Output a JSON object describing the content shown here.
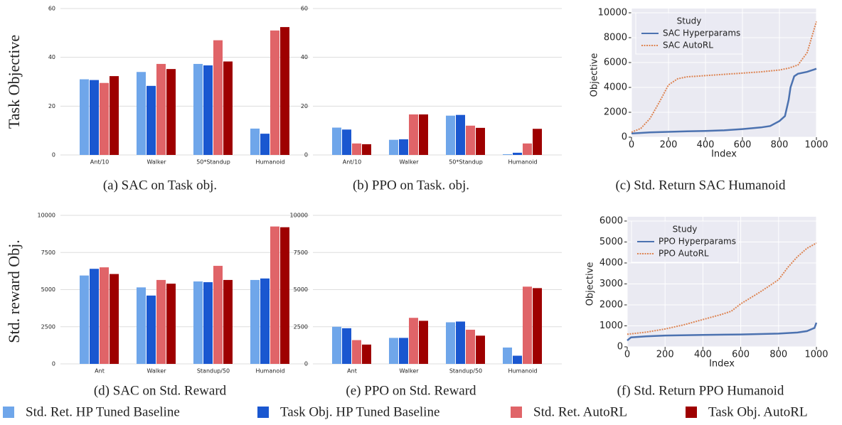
{
  "row_labels": [
    "Task Objective",
    "Std. reward Obj."
  ],
  "chart_data": [
    {
      "type": "bar",
      "caption": "(a) SAC on Task obj.",
      "categories": [
        "Ant/10",
        "Walker",
        "50*Standup",
        "Humanoid"
      ],
      "ylim": [
        0,
        60
      ],
      "yticks": [
        0,
        20,
        40,
        60
      ],
      "grid": true,
      "series": [
        {
          "name": "Std. Ret. HP Tuned Baseline",
          "color": "#6fa6ea",
          "values": [
            31,
            34,
            37.3,
            10.8
          ]
        },
        {
          "name": "Task Obj. HP Tuned Baseline",
          "color": "#1a57d0",
          "values": [
            30.7,
            28.3,
            36.7,
            8.7
          ]
        },
        {
          "name": "Std. Ret. AutoRL",
          "color": "#e06468",
          "values": [
            29.5,
            37.3,
            47,
            51
          ]
        },
        {
          "name": "Task Obj. AutoRL",
          "color": "#9e0000",
          "values": [
            32.3,
            35.2,
            38.3,
            52.4
          ]
        }
      ]
    },
    {
      "type": "bar",
      "caption": "(b) PPO on Task. obj.",
      "categories": [
        "Ant/10",
        "Walker",
        "50*Standup",
        "Humanoid"
      ],
      "ylim": [
        0,
        60
      ],
      "yticks": [
        0,
        20,
        40,
        60
      ],
      "grid": true,
      "series": [
        {
          "name": "Std. Ret. HP Tuned Baseline",
          "color": "#6fa6ea",
          "values": [
            11.2,
            6.2,
            16.1,
            0.3
          ]
        },
        {
          "name": "Task Obj. HP Tuned Baseline",
          "color": "#1a57d0",
          "values": [
            10.4,
            6.4,
            16.4,
            0.9
          ]
        },
        {
          "name": "Std. Ret. AutoRL",
          "color": "#e06468",
          "values": [
            4.7,
            16.6,
            12,
            4.7
          ]
        },
        {
          "name": "Task Obj. AutoRL",
          "color": "#9e0000",
          "values": [
            4.4,
            16.6,
            11.1,
            10.7
          ]
        }
      ]
    },
    {
      "type": "line",
      "caption": "(c) Std. Return SAC Humanoid",
      "x_label": "Index",
      "y_label": "Objective",
      "legend_title": "Study",
      "xlim": [
        0,
        1000
      ],
      "xticks": [
        0,
        200,
        400,
        600,
        800,
        1000
      ],
      "ylim": [
        0,
        10000
      ],
      "yticks": [
        0,
        2000,
        4000,
        6000,
        8000,
        10000
      ],
      "grid": true,
      "series": [
        {
          "name": "SAC Hyperparams",
          "color": "#4c72b0",
          "style": "solid",
          "x": [
            0,
            100,
            200,
            300,
            400,
            500,
            600,
            700,
            750,
            800,
            830,
            850,
            860,
            880,
            900,
            950,
            1000
          ],
          "values": [
            300,
            380,
            430,
            470,
            500,
            550,
            650,
            780,
            900,
            1300,
            1700,
            3000,
            4000,
            4900,
            5100,
            5250,
            5500
          ]
        },
        {
          "name": "SAC AutoRL",
          "color": "#dd8452",
          "style": "dotted",
          "x": [
            0,
            50,
            100,
            150,
            200,
            250,
            300,
            400,
            500,
            600,
            700,
            800,
            850,
            900,
            950,
            1000
          ],
          "values": [
            400,
            700,
            1500,
            2800,
            4200,
            4700,
            4850,
            4950,
            5050,
            5150,
            5250,
            5400,
            5550,
            5800,
            6800,
            9300
          ]
        }
      ]
    },
    {
      "type": "bar",
      "caption": "(d) SAC on Std. Reward",
      "categories": [
        "Ant",
        "Walker",
        "Standup/50",
        "Humanoid"
      ],
      "ylim": [
        0,
        10000
      ],
      "yticks": [
        0,
        2500,
        5000,
        7500,
        10000
      ],
      "grid": true,
      "series": [
        {
          "name": "Std. Ret. HP Tuned Baseline",
          "color": "#6fa6ea",
          "values": [
            5950,
            5150,
            5550,
            5650
          ]
        },
        {
          "name": "Task Obj. HP Tuned Baseline",
          "color": "#1a57d0",
          "values": [
            6400,
            4600,
            5500,
            5750
          ]
        },
        {
          "name": "Std. Ret. AutoRL",
          "color": "#e06468",
          "values": [
            6500,
            5650,
            6600,
            9250
          ]
        },
        {
          "name": "Task Obj. AutoRL",
          "color": "#9e0000",
          "values": [
            6050,
            5400,
            5650,
            9200
          ]
        }
      ]
    },
    {
      "type": "bar",
      "caption": "(e) PPO on Std. Reward",
      "categories": [
        "Ant",
        "Walker",
        "Standup/50",
        "Humanoid"
      ],
      "ylim": [
        0,
        10000
      ],
      "yticks": [
        0,
        2500,
        5000,
        7500,
        10000
      ],
      "grid": true,
      "series": [
        {
          "name": "Std. Ret. HP Tuned Baseline",
          "color": "#6fa6ea",
          "values": [
            2500,
            1750,
            2800,
            1100
          ]
        },
        {
          "name": "Task Obj. HP Tuned Baseline",
          "color": "#1a57d0",
          "values": [
            2400,
            1750,
            2850,
            550
          ]
        },
        {
          "name": "Std. Ret. AutoRL",
          "color": "#e06468",
          "values": [
            1600,
            3100,
            2300,
            5200
          ]
        },
        {
          "name": "Task Obj. AutoRL",
          "color": "#9e0000",
          "values": [
            1300,
            2900,
            1900,
            5100
          ]
        }
      ]
    },
    {
      "type": "line",
      "caption": "(f) Std. Return PPO Humanoid",
      "x_label": "Index",
      "y_label": "Objective",
      "legend_title": "Study",
      "xlim": [
        0,
        1000
      ],
      "xticks": [
        0,
        200,
        400,
        600,
        800,
        1000
      ],
      "ylim": [
        0,
        6000
      ],
      "yticks": [
        0,
        1000,
        2000,
        3000,
        4000,
        5000,
        6000
      ],
      "grid": true,
      "series": [
        {
          "name": "PPO Hyperparams",
          "color": "#4c72b0",
          "style": "solid",
          "x": [
            0,
            20,
            100,
            200,
            400,
            600,
            800,
            900,
            950,
            990,
            1000
          ],
          "values": [
            300,
            450,
            500,
            540,
            570,
            590,
            630,
            680,
            750,
            900,
            1150
          ]
        },
        {
          "name": "PPO AutoRL",
          "color": "#dd8452",
          "style": "dotted",
          "x": [
            0,
            100,
            200,
            300,
            400,
            500,
            550,
            600,
            700,
            800,
            850,
            900,
            950,
            1000
          ],
          "values": [
            600,
            700,
            850,
            1050,
            1300,
            1550,
            1700,
            2050,
            2600,
            3200,
            3800,
            4300,
            4700,
            4950
          ]
        }
      ]
    }
  ]
}
